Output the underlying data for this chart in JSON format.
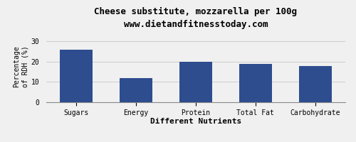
{
  "title": "Cheese substitute, mozzarella per 100g",
  "subtitle": "www.dietandfitnesstoday.com",
  "categories": [
    "Sugars",
    "Energy",
    "Protein",
    "Total Fat",
    "Carbohydrate"
  ],
  "values": [
    26,
    12,
    20,
    19,
    18
  ],
  "bar_color": "#2e4d8e",
  "xlabel": "Different Nutrients",
  "ylabel": "Percentage\nof RDH (%)",
  "ylim": [
    0,
    35
  ],
  "yticks": [
    0,
    10,
    20,
    30
  ],
  "background_color": "#f0f0f0",
  "title_fontsize": 9,
  "subtitle_fontsize": 8,
  "axis_label_fontsize": 7,
  "tick_fontsize": 7,
  "xlabel_fontsize": 8,
  "xlabel_fontweight": "bold"
}
